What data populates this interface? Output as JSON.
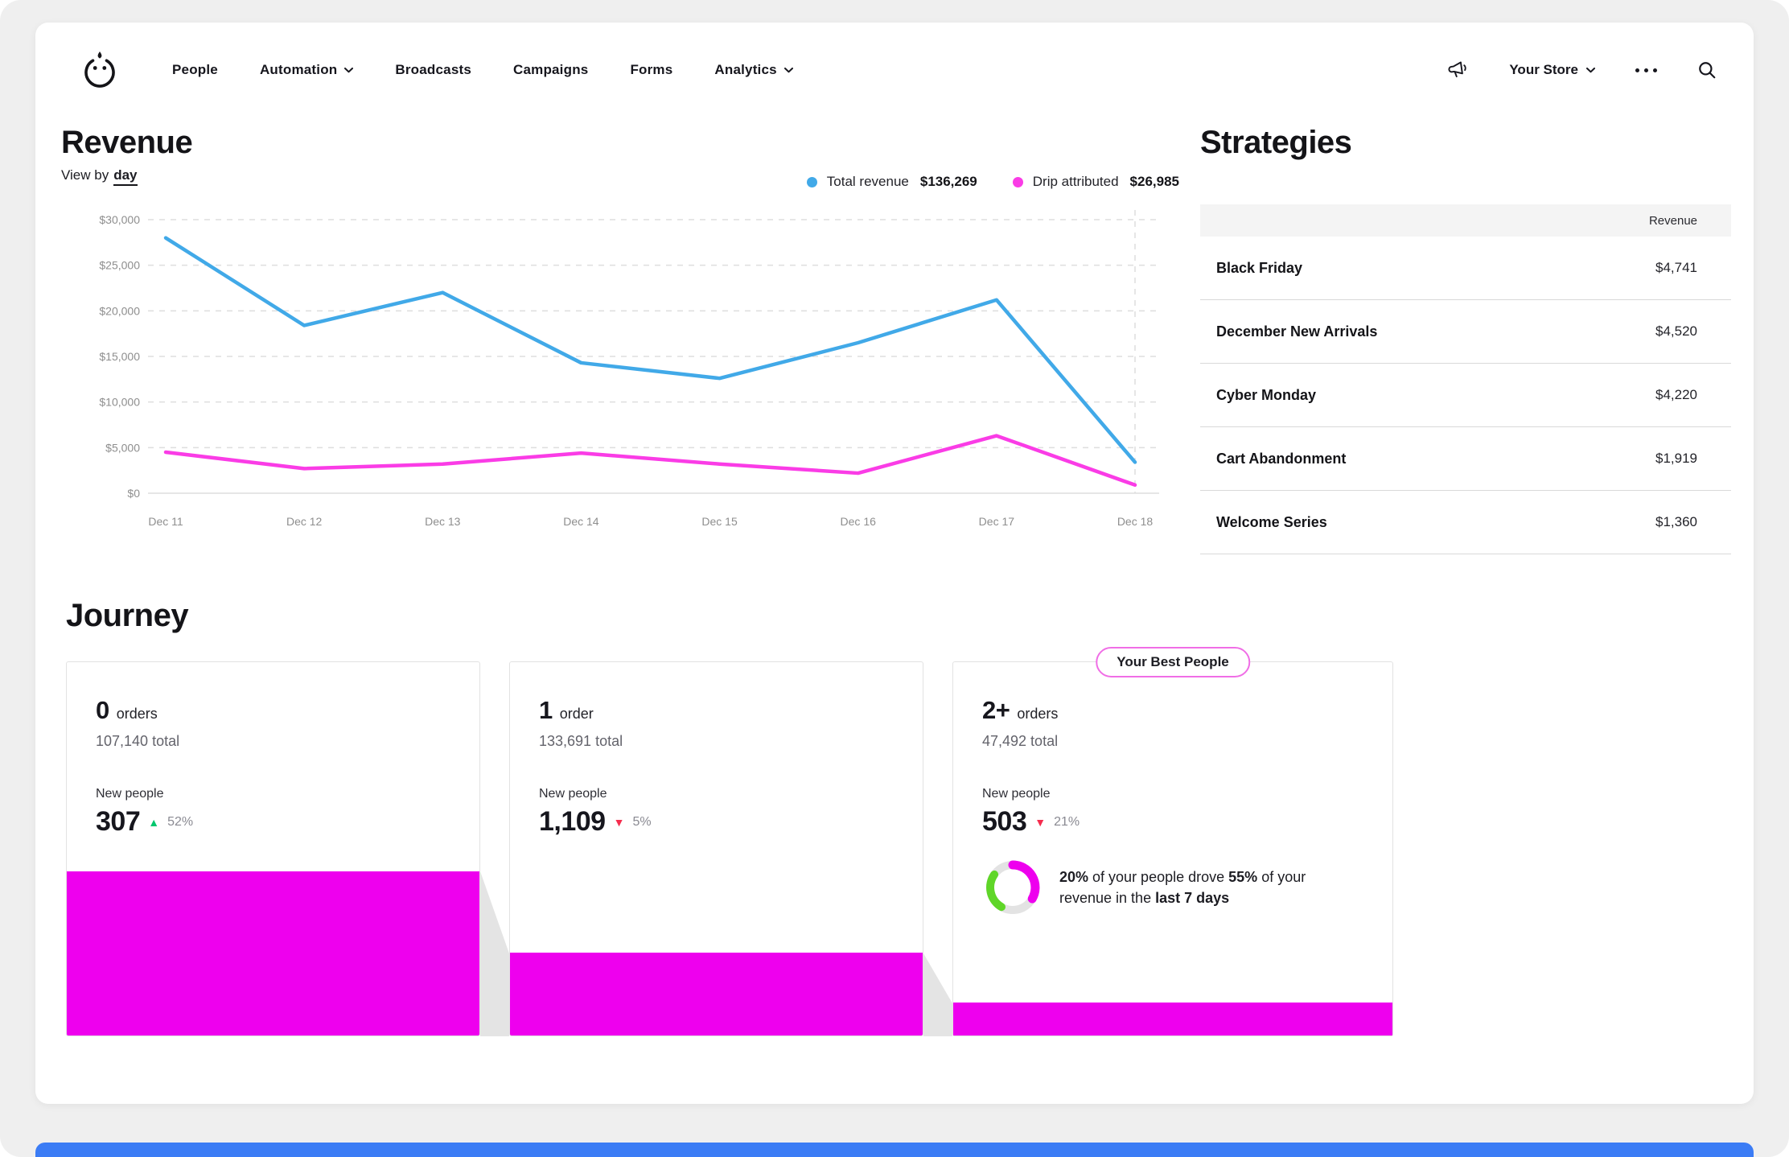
{
  "nav": {
    "items": [
      {
        "label": "People",
        "has_chevron": false
      },
      {
        "label": "Automation",
        "has_chevron": true
      },
      {
        "label": "Broadcasts",
        "has_chevron": false
      },
      {
        "label": "Campaigns",
        "has_chevron": false
      },
      {
        "label": "Forms",
        "has_chevron": false
      },
      {
        "label": "Analytics",
        "has_chevron": true
      }
    ],
    "store_label": "Your Store",
    "icons": [
      "megaphone-icon",
      "more-menu-icon",
      "search-icon"
    ]
  },
  "revenue": {
    "title": "Revenue",
    "view_by_label": "View by",
    "view_by_value": "day",
    "legend": [
      {
        "label": "Total revenue",
        "value": "$136,269",
        "color": "#41a9e8"
      },
      {
        "label": "Drip attributed",
        "value": "$26,985",
        "color": "#fa3ce6"
      }
    ]
  },
  "chart_data": {
    "type": "line",
    "x": [
      "Dec 11",
      "Dec 12",
      "Dec 13",
      "Dec 14",
      "Dec 15",
      "Dec 16",
      "Dec 17",
      "Dec 18"
    ],
    "series": [
      {
        "name": "Total revenue",
        "color": "#41a9e8",
        "values": [
          28000,
          18400,
          22000,
          14300,
          12600,
          16500,
          21200,
          3400
        ]
      },
      {
        "name": "Drip attributed",
        "color": "#fa3ce6",
        "values": [
          4500,
          2700,
          3200,
          4400,
          3200,
          2200,
          6300,
          900
        ]
      }
    ],
    "title": "Revenue",
    "xlabel": "",
    "ylabel": "",
    "ylim": [
      0,
      30000
    ],
    "ytick_step": 5000,
    "ytick_labels": [
      "$0",
      "$5,000",
      "$10,000",
      "$15,000",
      "$20,000",
      "$25,000",
      "$30,000"
    ],
    "grid": "horizontal dashed, vertical dashed marker at last x",
    "legend_position": "top-right"
  },
  "strategies": {
    "title": "Strategies",
    "column_header": "Revenue",
    "rows": [
      {
        "name": "Black Friday",
        "revenue": "$4,741"
      },
      {
        "name": "December New Arrivals",
        "revenue": "$4,520"
      },
      {
        "name": "Cyber Monday",
        "revenue": "$4,220"
      },
      {
        "name": "Cart Abandonment",
        "revenue": "$1,919"
      },
      {
        "name": "Welcome Series",
        "revenue": "$1,360"
      }
    ]
  },
  "journey": {
    "title": "Journey",
    "cards": [
      {
        "orders_value": "0",
        "orders_label": "orders",
        "total": "107,140 total",
        "new_people_label": "New people",
        "new_people_value": "307",
        "delta": "52%",
        "delta_direction": "up",
        "bar_height_pct": 44
      },
      {
        "orders_value": "1",
        "orders_label": "order",
        "total": "133,691 total",
        "new_people_label": "New people",
        "new_people_value": "1,109",
        "delta": "5%",
        "delta_direction": "down",
        "bar_height_pct": 22.1
      },
      {
        "badge": "Your Best People",
        "orders_value": "2+",
        "orders_label": "orders",
        "total": "47,492 total",
        "new_people_label": "New people",
        "new_people_value": "503",
        "delta": "21%",
        "delta_direction": "down",
        "bar_height_pct": 8.8,
        "insight": {
          "pct_people": "20%",
          "mid1": " of your people drove ",
          "pct_revenue": "55%",
          "mid2": " of your revenue in the ",
          "period": "last 7 days"
        }
      }
    ]
  },
  "colors": {
    "magenta": "#ee00ee",
    "magenta_line": "#fa3ce6",
    "blue_line": "#41a9e8",
    "green": "#00c76e",
    "red": "#f52d4e",
    "donut_green": "#5fd628",
    "donut_gray": "#e3e3e3",
    "bottom_bar": "#3b7cf5"
  }
}
